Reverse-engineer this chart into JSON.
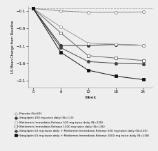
{
  "weeks": [
    0,
    6,
    12,
    18,
    24
  ],
  "series": [
    {
      "label": "Placebo (N=69)",
      "values": [
        -0.02,
        -0.09,
        -0.13,
        -0.13,
        -0.12
      ],
      "marker": "o",
      "markersize": 3,
      "color": "#888888",
      "markerfacecolor": "white",
      "linestyle": "-",
      "linewidth": 0.7
    },
    {
      "label": "Sitagliptin 100 mg once daily (N=113)",
      "values": [
        -0.02,
        -1.08,
        -1.08,
        -1.06,
        -1.08
      ],
      "marker": "o",
      "markersize": 3,
      "color": "#333333",
      "markerfacecolor": "#333333",
      "linestyle": "-",
      "linewidth": 0.7
    },
    {
      "label": "Metformin Immediate-Release 500 mg twice daily (N=128)",
      "values": [
        -0.02,
        -0.55,
        -1.02,
        -1.05,
        -1.08
      ],
      "marker": "o",
      "markersize": 3,
      "color": "#999999",
      "markerfacecolor": "white",
      "linestyle": "-",
      "linewidth": 0.7
    },
    {
      "label": "Metformin Immediate-Release 1000 mg twice daily (N=136)",
      "values": [
        -0.02,
        -0.72,
        -1.38,
        -1.45,
        -1.52
      ],
      "marker": "s",
      "markersize": 3,
      "color": "#666666",
      "markerfacecolor": "white",
      "linestyle": "-",
      "linewidth": 0.7
    },
    {
      "label": "Sitagliptin 50 mg twice daily + Metformin Immediate-Release 500 mg twice daily (N=150)",
      "values": [
        -0.02,
        -1.15,
        -1.55,
        -1.6,
        -1.62
      ],
      "marker": "o",
      "markersize": 3,
      "color": "#444444",
      "markerfacecolor": "#444444",
      "linestyle": "-",
      "linewidth": 0.7
    },
    {
      "label": "Sitagliptin 50 mg twice daily + Metformin Immediate-Release 1000 mg twice daily (N=158)",
      "values": [
        -0.02,
        -1.28,
        -1.8,
        -1.97,
        -2.07
      ],
      "marker": "s",
      "markersize": 3,
      "color": "#111111",
      "markerfacecolor": "#111111",
      "linestyle": "-",
      "linewidth": 0.7
    }
  ],
  "xlabel": "Week",
  "ylabel": "LS Mean Change from Baseline",
  "xlim": [
    -1,
    26
  ],
  "ylim": [
    -2.3,
    0.05
  ],
  "yticks": [
    -0.1,
    -0.6,
    -1.1,
    -1.6,
    -2.1
  ],
  "xticks": [
    0,
    6,
    12,
    18,
    24
  ],
  "hline_y": -0.02,
  "hline_style": "--",
  "hline_color": "#aaaaaa",
  "background_color": "#eeeeee",
  "legend_markers": [
    "o",
    "o",
    "o",
    "s",
    "o",
    "s"
  ],
  "legend_facecolors": [
    "white",
    "#333333",
    "white",
    "white",
    "#444444",
    "#111111"
  ],
  "legend_edgecolors": [
    "#888888",
    "#333333",
    "#999999",
    "#666666",
    "#444444",
    "#111111"
  ],
  "legend_labels": [
    "Placebo (N=69)",
    "Sitagliptin 100 mg once daily (N=113)",
    "Metformin Immediate-Release 500 mg twice daily (N=128)",
    "Metformin Immediate-Release 1000 mg twice daily (N=136)",
    "Sitagliptin 50 mg twice daily + Metformin Immediate-Release 500 mg twice daily (N=150)",
    "Sitagliptin 50 mg twice daily + Metformin Immediate-Release 1000 mg twice daily (N=158)"
  ]
}
